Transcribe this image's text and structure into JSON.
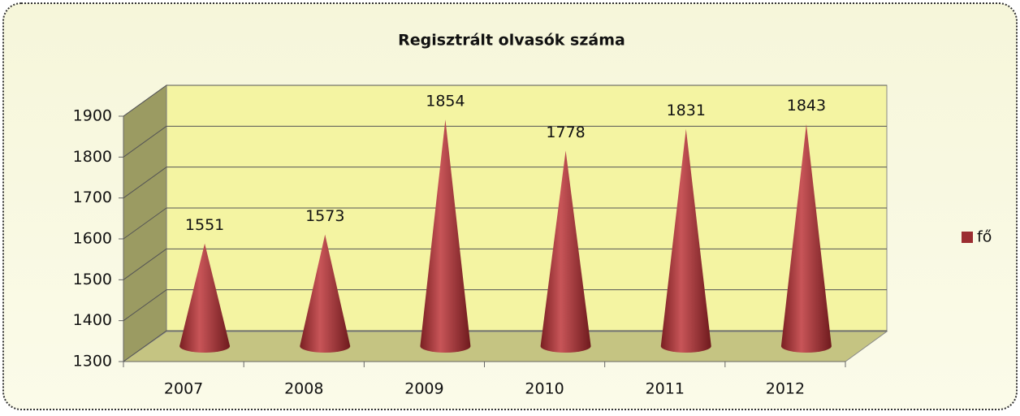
{
  "chart_data": {
    "type": "bar",
    "title": "Regisztrált olvasók száma",
    "categories": [
      "2007",
      "2008",
      "2009",
      "2010",
      "2011",
      "2012"
    ],
    "series": [
      {
        "name": "fő",
        "color": "#9b2d30",
        "values": [
          1551,
          1573,
          1854,
          1778,
          1831,
          1843
        ]
      }
    ],
    "ylim": [
      1300,
      1900
    ],
    "yticks": [
      1300,
      1400,
      1500,
      1600,
      1700,
      1800,
      1900
    ],
    "grid": true
  }
}
